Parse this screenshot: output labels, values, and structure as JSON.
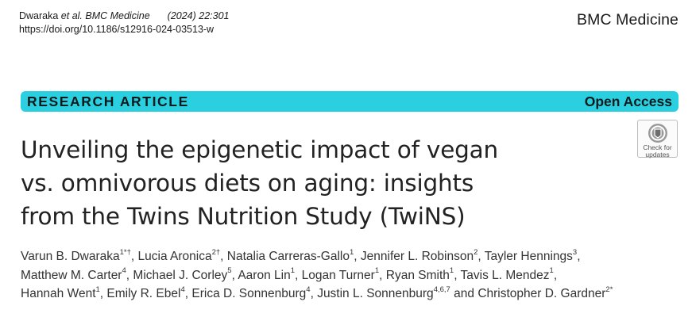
{
  "header": {
    "citation_authors": "Dwaraka ",
    "citation_etal": "et al. BMC Medicine",
    "citation_volume": "(2024) 22:301",
    "doi": "https://doi.org/10.1186/s12916-024-03513-w",
    "journal": "BMC Medicine"
  },
  "banner": {
    "article_type": "RESEARCH ARTICLE",
    "access": "Open Access",
    "color": "#2bd0e0"
  },
  "badge": {
    "icon": "check-for-updates-icon",
    "line1": "Check for",
    "line2": "updates"
  },
  "title_lines": [
    "Unveiling the epigenetic impact of vegan",
    "vs. omnivorous diets on aging: insights",
    "from the Twins Nutrition Study (TwiNS)"
  ],
  "authors": [
    {
      "name": "Varun B. Dwaraka",
      "sup": "1*†",
      "sep": ", "
    },
    {
      "name": "Lucia Aronica",
      "sup": "2†",
      "sep": ", "
    },
    {
      "name": "Natalia Carreras-Gallo",
      "sup": "1",
      "sep": ", "
    },
    {
      "name": "Jennifer L. Robinson",
      "sup": "2",
      "sep": ", "
    },
    {
      "name": "Tayler Hennings",
      "sup": "3",
      "sep": ","
    },
    {
      "name": "Matthew M. Carter",
      "sup": "4",
      "sep": ", "
    },
    {
      "name": "Michael J. Corley",
      "sup": "5",
      "sep": ", "
    },
    {
      "name": "Aaron Lin",
      "sup": "1",
      "sep": ", "
    },
    {
      "name": "Logan Turner",
      "sup": "1",
      "sep": ", "
    },
    {
      "name": "Ryan Smith",
      "sup": "1",
      "sep": ", "
    },
    {
      "name": "Tavis L. Mendez",
      "sup": "1",
      "sep": ","
    },
    {
      "name": "Hannah Went",
      "sup": "1",
      "sep": ", "
    },
    {
      "name": "Emily R. Ebel",
      "sup": "4",
      "sep": ", "
    },
    {
      "name": "Erica D. Sonnenburg",
      "sup": "4",
      "sep": ", "
    },
    {
      "name": "Justin L. Sonnenburg",
      "sup": "4,6,7",
      "sep": " and "
    },
    {
      "name": "Christopher D. Gardner",
      "sup": "2*",
      "sep": ""
    }
  ]
}
